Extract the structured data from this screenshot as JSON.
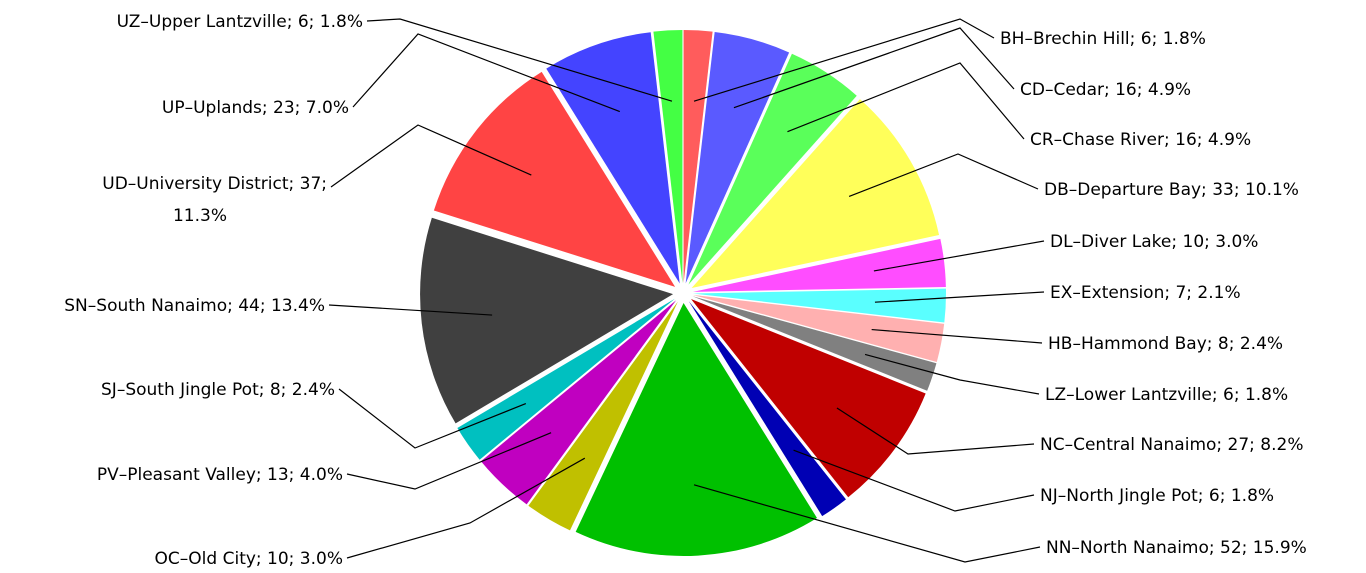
{
  "chart_data": {
    "type": "pie",
    "title": "",
    "slices": [
      {
        "code": "BH",
        "name": "Brechin Hill",
        "value": 6,
        "percent": 1.8,
        "label": "BH–Brechin Hill; 6; 1.8%",
        "color": "#ff5c5c"
      },
      {
        "code": "CD",
        "name": "Cedar",
        "value": 16,
        "percent": 4.9,
        "label": "CD–Cedar; 16; 4.9%",
        "color": "#5a5aff"
      },
      {
        "code": "CR",
        "name": "Chase River",
        "value": 16,
        "percent": 4.9,
        "label": "CR–Chase River; 16; 4.9%",
        "color": "#5aff5a"
      },
      {
        "code": "DB",
        "name": "Departure Bay",
        "value": 33,
        "percent": 10.1,
        "label": "DB–Departure Bay; 33; 10.1%",
        "color": "#ffff5a"
      },
      {
        "code": "DL",
        "name": "Diver Lake",
        "value": 10,
        "percent": 3.0,
        "label": "DL–Diver Lake; 10; 3.0%",
        "color": "#ff4dff"
      },
      {
        "code": "EX",
        "name": "Extension",
        "value": 7,
        "percent": 2.1,
        "label": "EX–Extension; 7; 2.1%",
        "color": "#5affff"
      },
      {
        "code": "HB",
        "name": "Hammond Bay",
        "value": 8,
        "percent": 2.4,
        "label": "HB–Hammond Bay; 8; 2.4%",
        "color": "#ffb0b0"
      },
      {
        "code": "LZ",
        "name": "Lower Lantzville",
        "value": 6,
        "percent": 1.8,
        "label": "LZ–Lower Lantzville; 6; 1.8%",
        "color": "#808080"
      },
      {
        "code": "NC",
        "name": "Central Nanaimo",
        "value": 27,
        "percent": 8.2,
        "label": "NC–Central Nanaimo; 27; 8.2%",
        "color": "#c00000"
      },
      {
        "code": "NJ",
        "name": "North Jingle Pot",
        "value": 6,
        "percent": 1.8,
        "label": "NJ–North Jingle Pot; 6; 1.8%",
        "color": "#0000b4"
      },
      {
        "code": "NN",
        "name": "North Nanaimo",
        "value": 52,
        "percent": 15.9,
        "label": "NN–North Nanaimo; 52; 15.9%",
        "color": "#00c000"
      },
      {
        "code": "OC",
        "name": "Old City",
        "value": 10,
        "percent": 3.0,
        "label": "OC–Old City; 10; 3.0%",
        "color": "#c0c000"
      },
      {
        "code": "PV",
        "name": "Pleasant Valley",
        "value": 13,
        "percent": 4.0,
        "label": "PV–Pleasant Valley; 13; 4.0%",
        "color": "#c000c0"
      },
      {
        "code": "SJ",
        "name": "South Jingle Pot",
        "value": 8,
        "percent": 2.4,
        "label": "SJ–South Jingle Pot; 8; 2.4%",
        "color": "#00c0c0"
      },
      {
        "code": "SN",
        "name": "South Nanaimo",
        "value": 44,
        "percent": 13.4,
        "label": "SN–South Nanaimo; 44; 13.4%",
        "color": "#404040"
      },
      {
        "code": "UD",
        "name": "University District",
        "value": 37,
        "percent": 11.3,
        "label": "UD–University District; 37; 11.3%",
        "color": "#ff4444"
      },
      {
        "code": "UP",
        "name": "Uplands",
        "value": 23,
        "percent": 7.0,
        "label": "UP–Uplands; 23; 7.0%",
        "color": "#4444ff"
      },
      {
        "code": "UZ",
        "name": "Upper Lantzville",
        "value": 6,
        "percent": 1.8,
        "label": "UZ–Upper Lantzville; 6; 1.8%",
        "color": "#44ff44"
      }
    ]
  }
}
